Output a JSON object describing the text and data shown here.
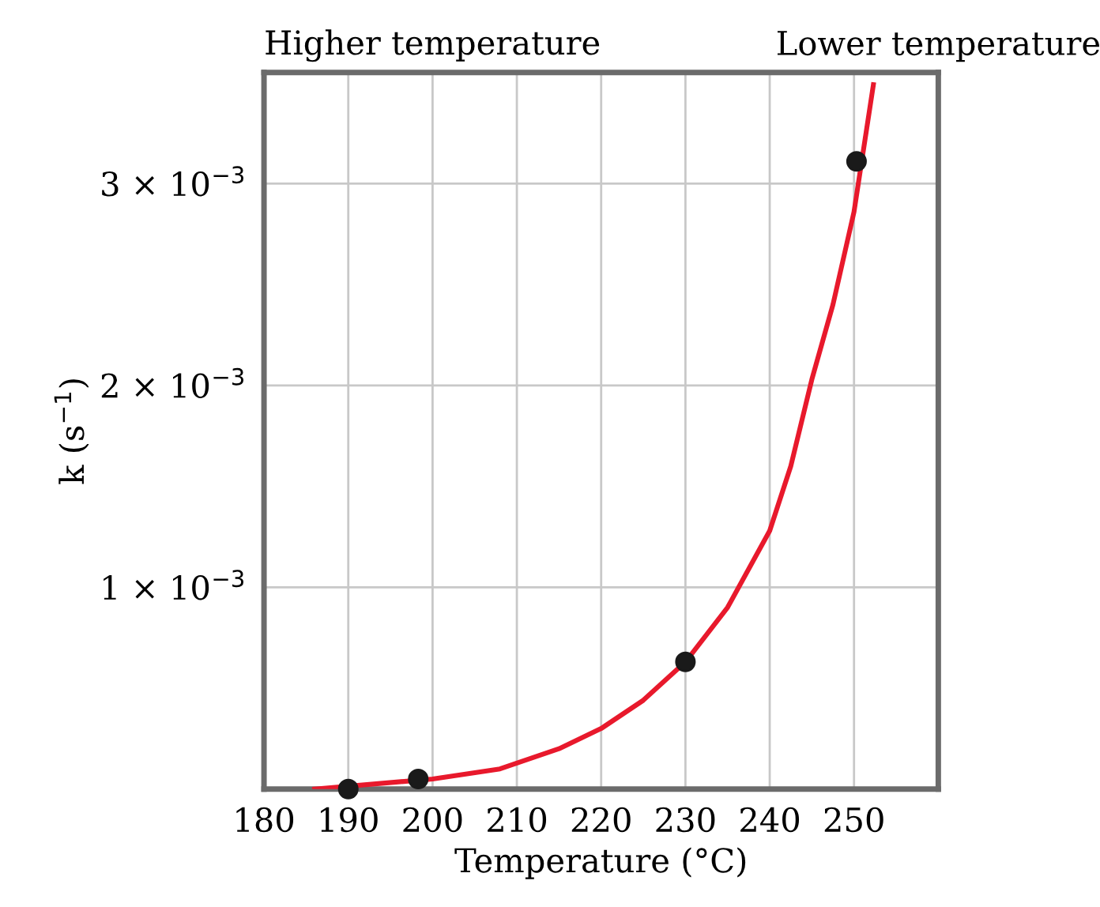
{
  "chart_data": {
    "type": "scatter",
    "xlabel": "Temperature (°C)",
    "ylabel": "k (s$^{−1}$)",
    "annotations": [
      "Higher temperature",
      "Lower temperature"
    ],
    "xlim": [
      180,
      260
    ],
    "xticks": [
      180,
      190,
      200,
      210,
      220,
      230,
      240,
      250
    ],
    "ylim": [
      0,
      0.00355
    ],
    "yticks": [
      {
        "value": 0.001,
        "label": "1 × 10$^{−3}$"
      },
      {
        "value": 0.002,
        "label": "2 × 10$^{−3}$"
      },
      {
        "value": 0.003,
        "label": "3 × 10$^{−3}$"
      }
    ],
    "grid": true,
    "series": [
      {
        "type": "line",
        "marker": "none",
        "color": "#e8192c",
        "line_style": "solid",
        "x": [
          186,
          200,
          208,
          215,
          220,
          225,
          230,
          235,
          240,
          242.5,
          245,
          247.5,
          250,
          252.3
        ],
        "values": [
          0.0,
          5e-05,
          0.0001,
          0.0002,
          0.0003,
          0.00044,
          0.00063,
          0.0009,
          0.00128,
          0.0016,
          0.00203,
          0.0024,
          0.00286,
          0.00349
        ]
      },
      {
        "marker": "circle",
        "color": "#1a1a1a",
        "x": [
          190,
          198.3,
          230,
          250.3
        ],
        "values": [
          0.0,
          5e-05,
          0.00063,
          0.00311
        ]
      }
    ]
  }
}
